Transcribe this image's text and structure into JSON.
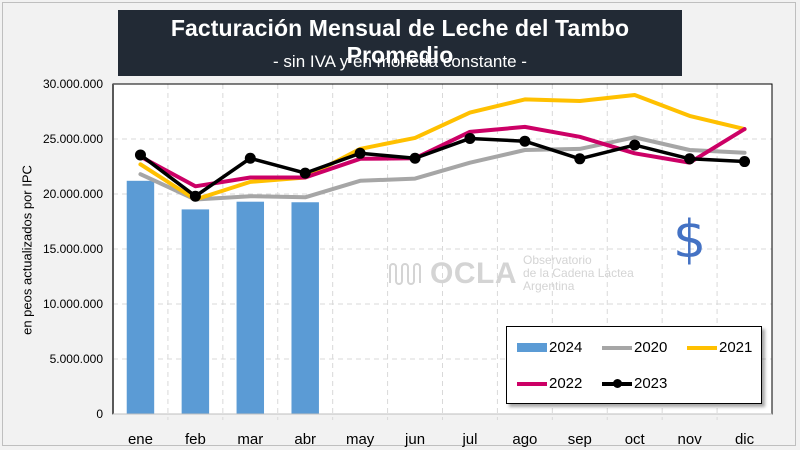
{
  "title": {
    "main": "Facturación Mensual de Leche del Tambo Promedio",
    "subtitle": "- sin IVA y en moneda constante -"
  },
  "watermark": {
    "logo": "OCLA",
    "line1": "Observatorio",
    "line2": "de la Cadena Láctea",
    "line3": "Argentina"
  },
  "currency_symbol": "$",
  "colors": {
    "2024": "#5b9bd5",
    "2020": "#a6a6a6",
    "2021": "#ffc000",
    "2022": "#cc0066",
    "2023": "#000000",
    "title_bg": "#222a35",
    "dollar": "#4472c4"
  },
  "chart_data": {
    "type": "bar+line",
    "title": "Facturación Mensual de Leche del Tambo Promedio",
    "subtitle": "- sin IVA y en moneda constante -",
    "xlabel": "",
    "ylabel": "en peos actualizados por IPC",
    "ylim": [
      0,
      30000000
    ],
    "yticks": [
      0,
      5000000,
      10000000,
      15000000,
      20000000,
      25000000,
      30000000
    ],
    "ytick_labels": [
      "0",
      "5.000.000",
      "10.000.000",
      "15.000.000",
      "20.000.000",
      "25.000.000",
      "30.000.000"
    ],
    "categories": [
      "ene",
      "feb",
      "mar",
      "abr",
      "may",
      "jun",
      "jul",
      "ago",
      "sep",
      "oct",
      "nov",
      "dic"
    ],
    "grid": true,
    "legend_position": "bottom-right",
    "series": [
      {
        "name": "2024",
        "kind": "bar",
        "values": [
          21200000,
          18600000,
          19300000,
          19250000,
          null,
          null,
          null,
          null,
          null,
          null,
          null,
          null
        ]
      },
      {
        "name": "2020",
        "kind": "line",
        "values": [
          21800000,
          19500000,
          19800000,
          19700000,
          21200000,
          21400000,
          22850000,
          24000000,
          24100000,
          25150000,
          24000000,
          23750000
        ]
      },
      {
        "name": "2021",
        "kind": "line",
        "values": [
          22700000,
          19500000,
          21100000,
          21500000,
          24100000,
          25100000,
          27400000,
          28600000,
          28450000,
          29000000,
          27100000,
          25900000
        ]
      },
      {
        "name": "2022",
        "kind": "line",
        "values": [
          23400000,
          20700000,
          21500000,
          21500000,
          23200000,
          23250000,
          25650000,
          26100000,
          25200000,
          23700000,
          22850000,
          25900000
        ]
      },
      {
        "name": "2023",
        "kind": "line-marker",
        "values": [
          23550000,
          19800000,
          23250000,
          21900000,
          23700000,
          23250000,
          25050000,
          24800000,
          23200000,
          24450000,
          23200000,
          22950000
        ]
      }
    ],
    "legend": [
      "2024",
      "2020",
      "2021",
      "2022",
      "2023"
    ]
  }
}
